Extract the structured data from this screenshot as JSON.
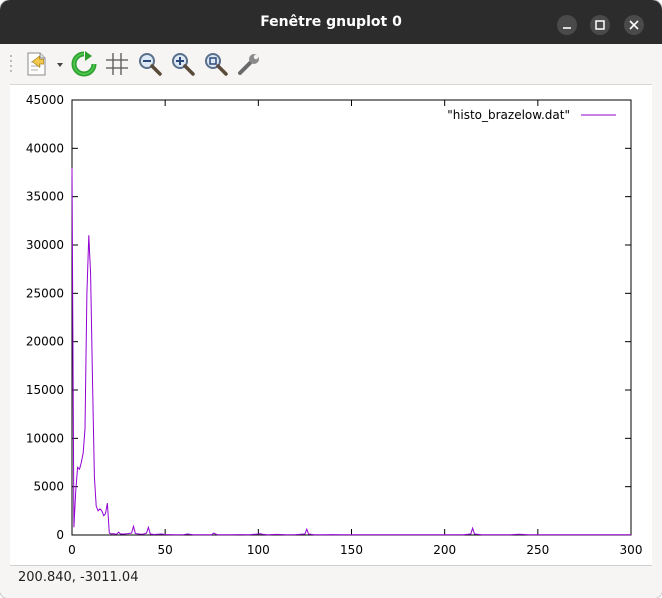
{
  "window": {
    "title": "Fenêtre gnuplot 0"
  },
  "toolbar": {
    "items": [
      {
        "name": "export-menu",
        "icon": "document-export-icon"
      },
      {
        "name": "replot",
        "icon": "refresh-icon"
      },
      {
        "name": "grid",
        "icon": "grid-icon"
      },
      {
        "name": "zoom-previous",
        "icon": "zoom-out-icon"
      },
      {
        "name": "zoom-next",
        "icon": "zoom-in-icon"
      },
      {
        "name": "autoscale",
        "icon": "zoom-fit-icon"
      },
      {
        "name": "preferences",
        "icon": "wrench-icon"
      }
    ]
  },
  "status": {
    "coordinates": "200.840, -3011.04"
  },
  "colors": {
    "series": "#9400d3",
    "titlebar": "#2c2c2c",
    "refresh": "#2e9e2e"
  },
  "chart_data": {
    "type": "line",
    "title": "",
    "xlabel": "",
    "ylabel": "",
    "xlim": [
      0,
      300
    ],
    "ylim": [
      0,
      45000
    ],
    "xticks": [
      "0",
      "50",
      "100",
      "150",
      "200",
      "250",
      "300"
    ],
    "yticks": [
      "0",
      "5000",
      "10000",
      "15000",
      "20000",
      "25000",
      "30000",
      "35000",
      "40000",
      "45000"
    ],
    "grid": false,
    "legend": "top-right",
    "series": [
      {
        "name": "\"histo_brazelow.dat\"",
        "x": [
          0,
          1,
          2,
          3,
          4,
          5,
          6,
          7,
          8,
          9,
          10,
          11,
          12,
          13,
          14,
          15,
          16,
          17,
          18,
          19,
          20,
          21,
          22,
          23,
          24,
          25,
          26,
          28,
          30,
          32,
          33,
          34,
          36,
          38,
          40,
          41,
          42,
          44,
          46,
          48,
          50,
          55,
          60,
          62,
          65,
          70,
          75,
          76,
          78,
          80,
          85,
          90,
          95,
          100,
          101,
          102,
          105,
          110,
          115,
          120,
          125,
          126,
          127,
          130,
          135,
          140,
          145,
          150,
          155,
          160,
          165,
          170,
          175,
          180,
          185,
          190,
          195,
          200,
          205,
          210,
          214,
          215,
          216,
          220,
          225,
          230,
          235,
          240,
          245,
          250,
          255,
          260,
          265,
          270,
          275,
          280,
          285,
          290,
          295,
          300
        ],
        "values": [
          38000,
          800,
          4500,
          7000,
          6800,
          7500,
          8500,
          11000,
          25000,
          31000,
          27000,
          16000,
          6000,
          3000,
          2500,
          2700,
          2500,
          2000,
          2200,
          3300,
          200,
          100,
          150,
          100,
          80,
          300,
          100,
          100,
          150,
          200,
          900,
          150,
          100,
          80,
          200,
          800,
          100,
          50,
          80,
          100,
          50,
          30,
          40,
          100,
          30,
          20,
          30,
          200,
          30,
          20,
          30,
          40,
          30,
          100,
          150,
          80,
          30,
          60,
          30,
          40,
          100,
          600,
          100,
          30,
          20,
          40,
          30,
          20,
          30,
          20,
          20,
          30,
          20,
          20,
          30,
          20,
          20,
          20,
          30,
          20,
          100,
          700,
          100,
          20,
          30,
          20,
          20,
          80,
          20,
          20,
          20,
          20,
          20,
          20,
          20,
          20,
          20,
          20,
          20,
          20
        ]
      }
    ]
  }
}
